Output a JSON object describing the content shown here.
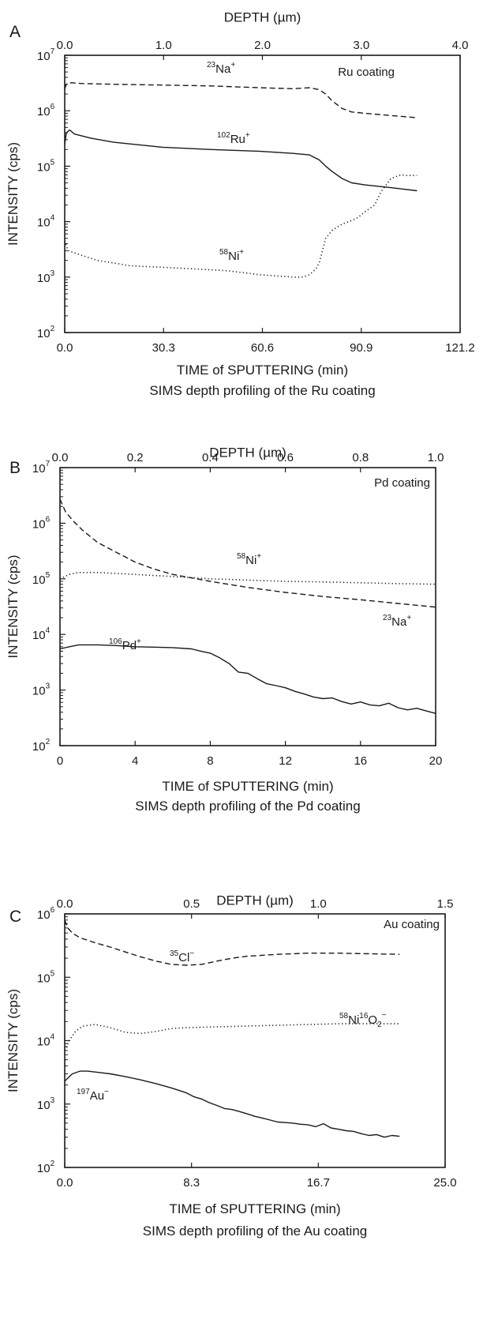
{
  "chart_data": [
    {
      "type": "line",
      "panel_letter": "A",
      "top_axis_label": "DEPTH (µm)",
      "x_label": "TIME of SPUTTERING (min)",
      "y_label": "INTENSITY (cps)",
      "caption": "SIMS depth profiling of the Ru coating",
      "coating_label": "Ru coating",
      "x_ticks": [
        "0.0",
        "30.3",
        "60.6",
        "90.9",
        "121.2"
      ],
      "x_range": [
        0,
        121.2
      ],
      "top_ticks": [
        "0.0",
        "1.0",
        "2.0",
        "3.0",
        "4.0"
      ],
      "y_scale": "log",
      "y_range_exp": [
        2,
        7
      ],
      "y_ticks": [
        {
          "base": "10",
          "exp": "2"
        },
        {
          "base": "10",
          "exp": "3"
        },
        {
          "base": "10",
          "exp": "4"
        },
        {
          "base": "10",
          "exp": "5"
        },
        {
          "base": "10",
          "exp": "6"
        },
        {
          "base": "10",
          "exp": "7"
        }
      ],
      "series": [
        {
          "sup": "23",
          "ion": "Na",
          "charge": "+",
          "style": "dashed",
          "x": [
            0,
            0.5,
            2,
            5,
            15,
            30,
            45,
            60,
            70,
            75,
            78,
            80,
            82,
            85,
            88,
            92,
            100,
            108
          ],
          "y": [
            2500000,
            3000000,
            3200000,
            3100000,
            3000000,
            2900000,
            2800000,
            2600000,
            2500000,
            2600000,
            2400000,
            2000000,
            1500000,
            1100000,
            950000,
            900000,
            820000,
            750000
          ]
        },
        {
          "sup": "102",
          "ion": "Ru",
          "charge": "+",
          "style": "solid",
          "x": [
            0,
            0.5,
            1.5,
            3,
            8,
            15,
            30,
            45,
            60,
            70,
            75,
            78,
            80,
            82,
            85,
            88,
            92,
            100,
            108
          ],
          "y": [
            250000,
            400000,
            450000,
            380000,
            320000,
            270000,
            220000,
            200000,
            185000,
            170000,
            160000,
            130000,
            100000,
            80000,
            60000,
            50000,
            46000,
            41000,
            36000
          ]
        },
        {
          "sup": "58",
          "ion": "Ni",
          "charge": "+",
          "style": "dotted",
          "x": [
            0,
            1,
            5,
            10,
            15,
            20,
            30,
            40,
            50,
            60,
            65,
            70,
            73,
            75,
            77,
            78,
            79,
            80,
            82,
            85,
            88,
            90,
            92,
            95,
            97,
            100,
            103,
            105,
            108
          ],
          "y": [
            4500,
            3000,
            2500,
            2000,
            1800,
            1600,
            1500,
            1400,
            1300,
            1100,
            1050,
            1000,
            1000,
            1100,
            1400,
            1800,
            3000,
            5000,
            7000,
            9000,
            10500,
            12000,
            15000,
            20000,
            35000,
            60000,
            70000,
            68000,
            68000
          ]
        }
      ]
    },
    {
      "type": "line",
      "panel_letter": "B",
      "top_axis_label": "DEPTH (µm)",
      "x_label": "TIME of SPUTTERING (min)",
      "y_label": "INTENSITY (cps)",
      "caption": "SIMS depth profiling of the Pd coating",
      "coating_label": "Pd coating",
      "x_ticks": [
        "0",
        "4",
        "8",
        "12",
        "16",
        "20"
      ],
      "x_range": [
        0,
        20
      ],
      "top_ticks": [
        "0.0",
        "0.2",
        "0.4",
        "0.6",
        "0.8",
        "1.0"
      ],
      "y_scale": "log",
      "y_range_exp": [
        2,
        7
      ],
      "y_ticks": [
        {
          "base": "10",
          "exp": "2"
        },
        {
          "base": "10",
          "exp": "3"
        },
        {
          "base": "10",
          "exp": "4"
        },
        {
          "base": "10",
          "exp": "5"
        },
        {
          "base": "10",
          "exp": "6"
        },
        {
          "base": "10",
          "exp": "7"
        }
      ],
      "series": [
        {
          "sup": "58",
          "ion": "Ni",
          "charge": "+",
          "style": "dotted",
          "x": [
            0,
            0.5,
            1,
            2,
            3,
            4,
            6,
            8,
            10,
            12,
            14,
            16,
            18,
            20
          ],
          "y": [
            100000,
            120000,
            130000,
            130000,
            125000,
            120000,
            110000,
            100000,
            95000,
            90000,
            88000,
            85000,
            82000,
            80000
          ]
        },
        {
          "sup": "23",
          "ion": "Na",
          "charge": "+",
          "style": "dashed",
          "x": [
            0,
            0.3,
            0.7,
            1.2,
            2,
            3,
            4,
            5,
            6,
            8,
            10,
            12,
            14,
            16,
            18,
            20
          ],
          "y": [
            2700000,
            1600000,
            1100000,
            750000,
            450000,
            300000,
            200000,
            150000,
            120000,
            90000,
            70000,
            57000,
            48000,
            42000,
            36000,
            31000
          ]
        },
        {
          "sup": "106",
          "ion": "Pd",
          "charge": "+",
          "style": "solid",
          "x": [
            0,
            0.5,
            1,
            2,
            3,
            4,
            5,
            6,
            7,
            7.5,
            8,
            8.5,
            9,
            9.5,
            10,
            10.5,
            11,
            11.5,
            12,
            12.5,
            13,
            13.5,
            14,
            14.5,
            15,
            15.5,
            16,
            16.5,
            17,
            17.5,
            18,
            18.5,
            19,
            19.5,
            20
          ],
          "y": [
            5500,
            6000,
            6500,
            6500,
            6300,
            6000,
            5900,
            5800,
            5500,
            5000,
            4600,
            3800,
            3000,
            2100,
            2000,
            1600,
            1300,
            1200,
            1100,
            950,
            850,
            750,
            700,
            720,
            620,
            560,
            610,
            540,
            520,
            580,
            480,
            440,
            470,
            420,
            380
          ]
        }
      ]
    },
    {
      "type": "line",
      "panel_letter": "C",
      "top_axis_label": "DEPTH (µm)",
      "x_label": "TIME of SPUTTERING (min)",
      "y_label": "INTENSITY (cps)",
      "caption": "SIMS depth profiling of the Au coating",
      "coating_label": "Au coating",
      "x_ticks": [
        "0.0",
        "8.3",
        "16.7",
        "25.0"
      ],
      "x_range": [
        0,
        25
      ],
      "top_ticks": [
        "0.0",
        "0.5",
        "1.0",
        "1.5"
      ],
      "y_scale": "log",
      "y_range_exp": [
        2,
        6
      ],
      "y_ticks": [
        {
          "base": "10",
          "exp": "2"
        },
        {
          "base": "10",
          "exp": "3"
        },
        {
          "base": "10",
          "exp": "4"
        },
        {
          "base": "10",
          "exp": "5"
        },
        {
          "base": "10",
          "exp": "6"
        }
      ],
      "series": [
        {
          "sup": "35",
          "ion": "Cl",
          "charge": "−",
          "style": "dashed",
          "x": [
            0,
            0.2,
            0.5,
            1,
            2,
            3,
            4,
            5,
            6,
            7,
            8,
            9,
            10,
            11,
            12,
            14,
            16,
            18,
            20,
            22
          ],
          "y": [
            800000,
            600000,
            500000,
            420000,
            350000,
            300000,
            250000,
            210000,
            180000,
            160000,
            155000,
            160000,
            180000,
            200000,
            215000,
            230000,
            240000,
            240000,
            235000,
            230000
          ]
        },
        {
          "sup": "58",
          "ion": "Ni",
          "sup2": "16",
          "ion2": "O",
          "sub": "2",
          "charge": "−",
          "style": "dotted",
          "x": [
            0,
            0.3,
            0.7,
            1.2,
            2,
            3,
            4,
            5,
            6,
            7,
            8,
            10,
            12,
            14,
            16,
            18,
            20,
            22
          ],
          "y": [
            7000,
            10000,
            14000,
            17000,
            18000,
            16000,
            13500,
            13000,
            14000,
            15500,
            16000,
            16500,
            17000,
            17500,
            18000,
            18500,
            18500,
            18500
          ]
        },
        {
          "sup": "197",
          "ion": "Au",
          "charge": "−",
          "style": "solid",
          "x": [
            0,
            0.5,
            1,
            1.5,
            2,
            3,
            4,
            5,
            6,
            7,
            8,
            8.5,
            9,
            9.5,
            10,
            10.5,
            11,
            11.5,
            12,
            12.5,
            13,
            13.5,
            14,
            14.5,
            15,
            15.5,
            16,
            16.5,
            17,
            17.5,
            18,
            18.5,
            19,
            19.5,
            20,
            20.5,
            21,
            21.5,
            22
          ],
          "y": [
            2300,
            3000,
            3300,
            3300,
            3200,
            3000,
            2700,
            2400,
            2100,
            1800,
            1500,
            1300,
            1200,
            1050,
            950,
            850,
            820,
            760,
            700,
            640,
            600,
            560,
            520,
            510,
            500,
            480,
            470,
            440,
            490,
            420,
            400,
            380,
            370,
            340,
            320,
            330,
            300,
            320,
            310
          ]
        }
      ]
    }
  ]
}
